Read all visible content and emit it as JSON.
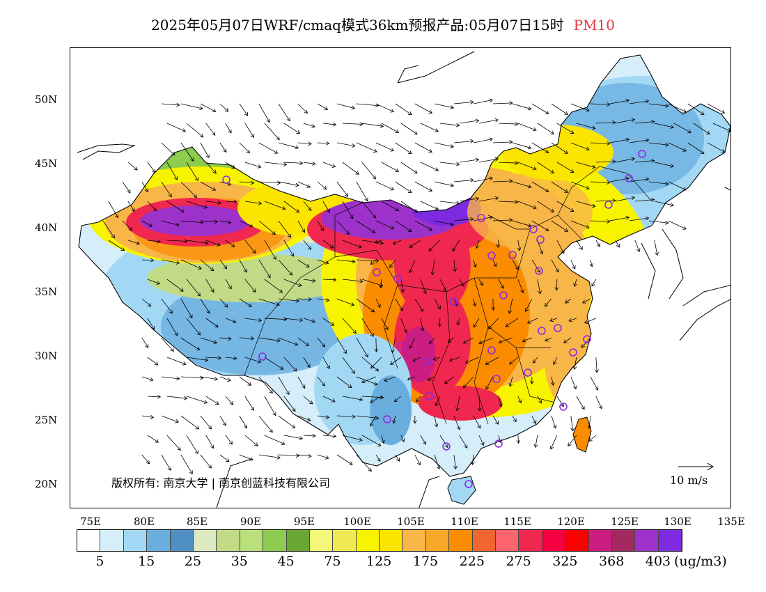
{
  "title": {
    "text": "2025年05月07日WRF/cmaq模式36km预报产品:05月07日15时",
    "variable": "PM10"
  },
  "axes": {
    "lat_labels": [
      "50N",
      "45N",
      "40N",
      "35N",
      "30N",
      "25N",
      "20N"
    ],
    "lon_labels": [
      "75E",
      "80E",
      "85E",
      "90E",
      "95E",
      "100E",
      "105E",
      "110E",
      "115E",
      "120E",
      "125E",
      "130E",
      "135E"
    ],
    "lon_range": [
      73,
      135
    ],
    "lat_range": [
      18,
      54
    ]
  },
  "colorbar": {
    "colors": [
      "#ffffff",
      "#d6eefa",
      "#a3d8f5",
      "#6aaede",
      "#4f8fc4",
      "#dde9c0",
      "#c0da86",
      "#b9e07b",
      "#8ccc4e",
      "#6aa835",
      "#f3f77a",
      "#f0e956",
      "#f8f400",
      "#fbe500",
      "#f8b548",
      "#f7a829",
      "#fb8c00",
      "#f06530",
      "#fc6470",
      "#f0284f",
      "#f50041",
      "#fb0000",
      "#cc1d83",
      "#a32a60",
      "#9c32c9",
      "#7d2ae0"
    ],
    "labels": [
      "5",
      "15",
      "25",
      "35",
      "45",
      "75",
      "125",
      "175",
      "225",
      "275",
      "325",
      "368",
      "403"
    ],
    "units": "(ug/m3)"
  },
  "copyright": "版权所有: 南京大学 | 南京创蓝科技有限公司",
  "wind_reference": {
    "label": "10 m/s"
  },
  "map_markers": {
    "stations": [
      "Urumqi",
      "Lhasa",
      "Xining",
      "Lanzhou",
      "Yinchuan",
      "Hohhot",
      "Beijing",
      "Tianjin",
      "Shijiazhuang",
      "Taiyuan",
      "Jinan",
      "Zhengzhou",
      "Xi'an",
      "Chengdu",
      "Chongqing",
      "Guiyang",
      "Kunming",
      "Nanning",
      "Guangzhou",
      "Haikou",
      "Changsha",
      "Wuhan",
      "Nanchang",
      "Hefei",
      "Nanjing",
      "Shanghai",
      "Hangzhou",
      "Fuzhou",
      "Shenyang",
      "Changchun",
      "Harbin"
    ]
  }
}
